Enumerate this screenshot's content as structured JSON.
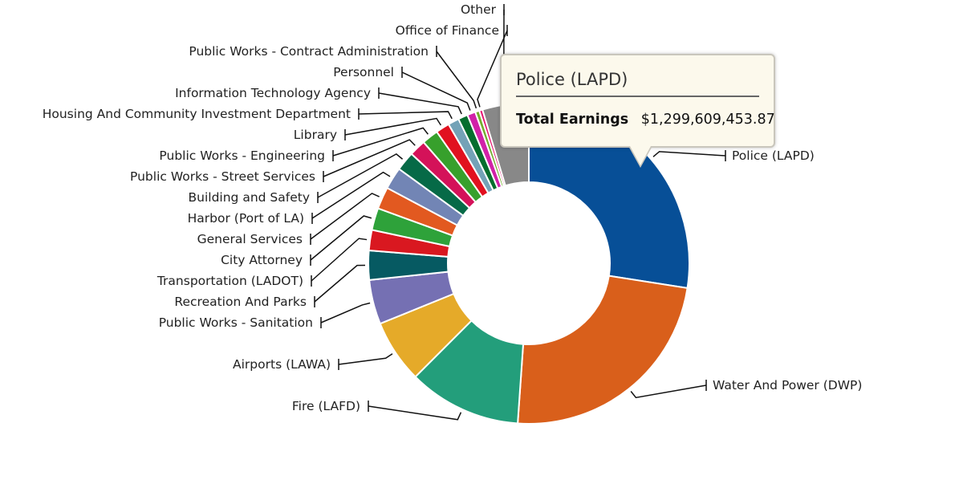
{
  "chart_data": {
    "type": "pie",
    "variant": "donut",
    "title": "",
    "value_label": "Total Earnings",
    "currency": "USD",
    "units": "millions USD (estimated from slice angles; Police exact from tooltip)",
    "categories": [
      "Police (LAPD)",
      "Water And Power (DWP)",
      "Fire (LAFD)",
      "Airports (LAWA)",
      "Public Works - Sanitation",
      "Recreation And Parks",
      "Transportation (LADOT)",
      "City Attorney",
      "General Services",
      "Harbor (Port of LA)",
      "Building and Safety",
      "Public Works - Street Services",
      "Public Works - Engineering",
      "Library",
      "Housing And Community Investment Department",
      "Information Technology Agency",
      "Personnel",
      "Public Works - Contract Administration",
      "Office of Finance",
      "Other"
    ],
    "values": [
      1299.6,
      1118.4,
      539.0,
      301.0,
      211.6,
      139.1,
      97.5,
      105.1,
      105.1,
      105.1,
      91.8,
      78.9,
      78.9,
      65.7,
      52.6,
      46.0,
      39.4,
      19.7,
      15.8,
      220.9
    ],
    "percentages": [
      27.47,
      23.64,
      11.39,
      6.36,
      4.47,
      2.94,
      2.06,
      2.22,
      2.22,
      2.22,
      1.94,
      1.67,
      1.67,
      1.39,
      1.11,
      0.97,
      0.83,
      0.42,
      0.33,
      4.67
    ],
    "colors": [
      "#074f97",
      "#d95f1b",
      "#239e7b",
      "#e5aa29",
      "#7570b3",
      "#065a62",
      "#d91820",
      "#2ea23a",
      "#e25920",
      "#7285b5",
      "#066a47",
      "#d41259",
      "#37a02c",
      "#e1111f",
      "#74a2b7",
      "#066e2e",
      "#d121a8",
      "#74ae2d",
      "#e61673",
      "#888888"
    ],
    "legend": "none (callout labels with leader lines)",
    "label_side": [
      "right",
      "right",
      "left",
      "left",
      "left",
      "left",
      "left",
      "left",
      "left",
      "left",
      "left",
      "left",
      "left",
      "left",
      "left",
      "left",
      "left",
      "left",
      "left",
      "left"
    ]
  },
  "tooltip": {
    "title": "Police (LAPD)",
    "metric_label": "Total Earnings",
    "metric_value": "$1,299,609,453.87"
  }
}
